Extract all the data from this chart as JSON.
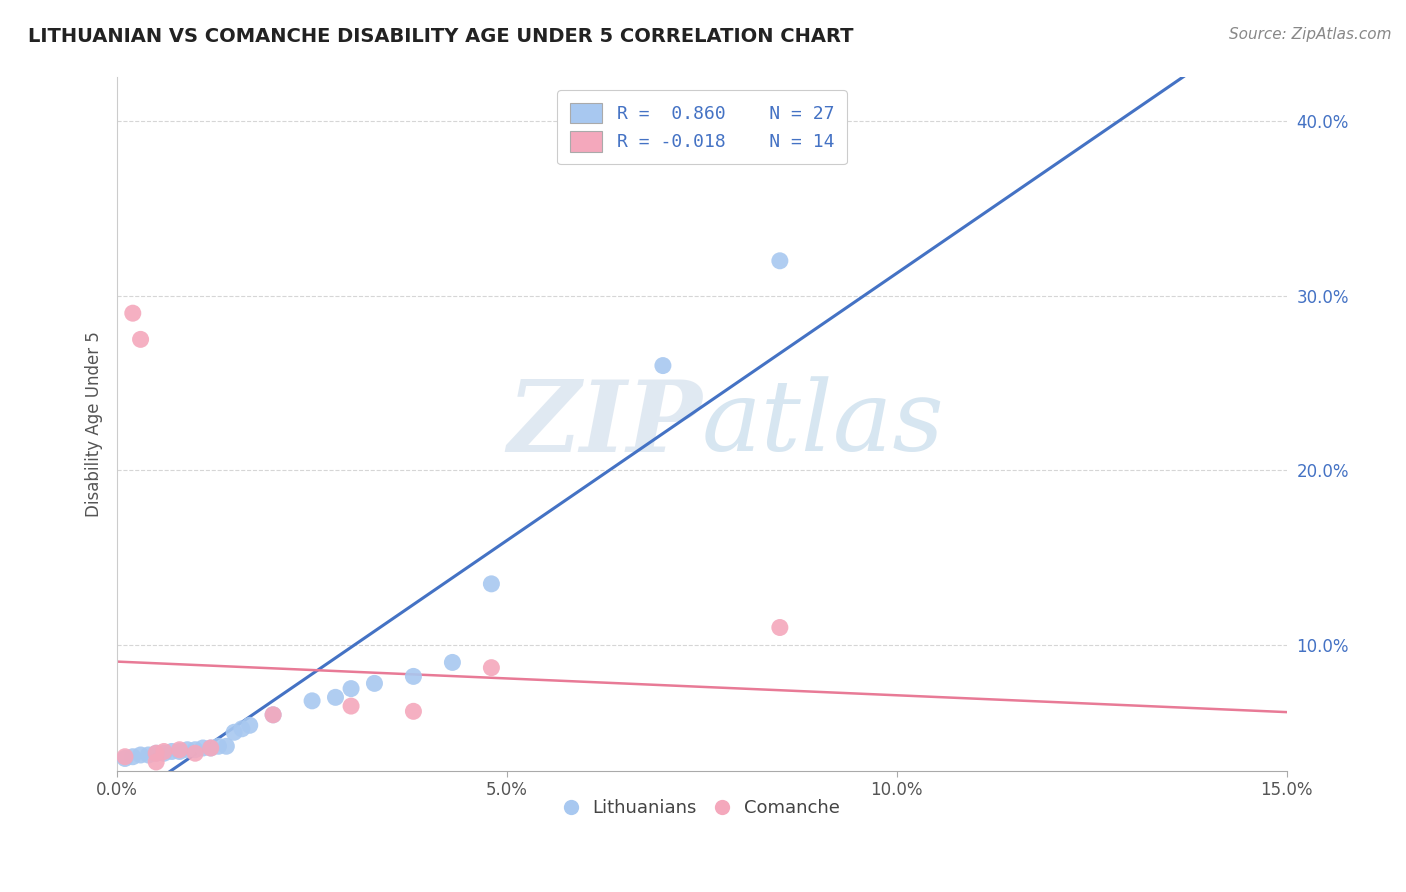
{
  "title": "LITHUANIAN VS COMANCHE DISABILITY AGE UNDER 5 CORRELATION CHART",
  "source": "Source: ZipAtlas.com",
  "ylabel": "Disability Age Under 5",
  "xlim": [
    0.0,
    0.15
  ],
  "ylim": [
    0.028,
    0.425
  ],
  "xticks": [
    0.0,
    0.05,
    0.1,
    0.15
  ],
  "xtick_labels": [
    "0.0%",
    "5.0%",
    "10.0%",
    "15.0%"
  ],
  "yticks": [
    0.1,
    0.2,
    0.3,
    0.4
  ],
  "ytick_labels": [
    "10.0%",
    "20.0%",
    "30.0%",
    "40.0%"
  ],
  "legend_labels": [
    "Lithuanians",
    "Comanche"
  ],
  "r_values": [
    0.86,
    -0.018
  ],
  "n_values": [
    27,
    14
  ],
  "blue_color": "#A8C8F0",
  "pink_color": "#F4A8BC",
  "blue_line_color": "#4472C4",
  "pink_line_color": "#E87A96",
  "watermark_zip": "ZIP",
  "watermark_atlas": "atlas",
  "lith_x": [
    0.001,
    0.002,
    0.003,
    0.004,
    0.005,
    0.006,
    0.007,
    0.008,
    0.009,
    0.01,
    0.011,
    0.012,
    0.013,
    0.014,
    0.015,
    0.016,
    0.017,
    0.02,
    0.025,
    0.028,
    0.03,
    0.033,
    0.038,
    0.043,
    0.048,
    0.07,
    0.085
  ],
  "lith_y": [
    0.035,
    0.036,
    0.037,
    0.037,
    0.038,
    0.038,
    0.039,
    0.039,
    0.04,
    0.04,
    0.041,
    0.041,
    0.042,
    0.042,
    0.05,
    0.052,
    0.054,
    0.06,
    0.068,
    0.07,
    0.075,
    0.078,
    0.082,
    0.09,
    0.135,
    0.26,
    0.32
  ],
  "com_x": [
    0.001,
    0.002,
    0.003,
    0.005,
    0.006,
    0.008,
    0.01,
    0.012,
    0.02,
    0.03,
    0.038,
    0.048,
    0.085,
    0.005
  ],
  "com_y": [
    0.036,
    0.29,
    0.275,
    0.038,
    0.039,
    0.04,
    0.038,
    0.041,
    0.06,
    0.065,
    0.062,
    0.087,
    0.11,
    0.033
  ],
  "blue_trend": [
    0.035,
    0.35
  ],
  "pink_trend_y": [
    0.092,
    0.085
  ],
  "title_fontsize": 14,
  "source_fontsize": 11,
  "axis_fontsize": 12,
  "tick_fontsize": 12
}
